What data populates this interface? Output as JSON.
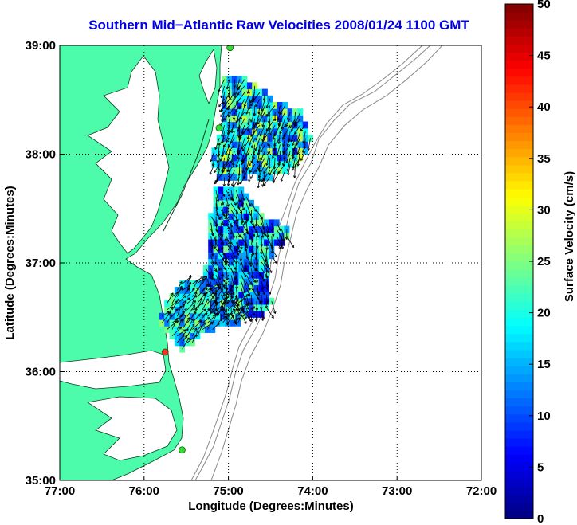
{
  "chart_data": {
    "type": "map-vector-field",
    "title": "Southern Mid−Atlantic Raw Velocities 2008/01/24 1100 GMT",
    "xlabel": "Longitude (Degrees:Minutes)",
    "ylabel": "Latitude (Degrees:Minutes)",
    "colorbar_label": "Surface Velocity (cm/s)",
    "xlim": [
      -77,
      -72
    ],
    "ylim": [
      35,
      39
    ],
    "x_ticks": [
      {
        "value": -77,
        "label": "77:00"
      },
      {
        "value": -76,
        "label": "76:00"
      },
      {
        "value": -75,
        "label": "75:00"
      },
      {
        "value": -74,
        "label": "74:00"
      },
      {
        "value": -73,
        "label": "73:00"
      },
      {
        "value": -72,
        "label": "72:00"
      }
    ],
    "y_ticks": [
      {
        "value": 35,
        "label": "35:00"
      },
      {
        "value": 36,
        "label": "36:00"
      },
      {
        "value": 37,
        "label": "37:00"
      },
      {
        "value": 38,
        "label": "38:00"
      },
      {
        "value": 39,
        "label": "39:00"
      }
    ],
    "colorbar_ticks": [
      {
        "value": 0,
        "label": "0"
      },
      {
        "value": 5,
        "label": "5"
      },
      {
        "value": 10,
        "label": "10"
      },
      {
        "value": 15,
        "label": "15"
      },
      {
        "value": 20,
        "label": "20"
      },
      {
        "value": 25,
        "label": "25"
      },
      {
        "value": 30,
        "label": "30"
      },
      {
        "value": 35,
        "label": "35"
      },
      {
        "value": 40,
        "label": "40"
      },
      {
        "value": 45,
        "label": "45"
      },
      {
        "value": 50,
        "label": "50"
      }
    ],
    "clim": [
      0,
      50
    ],
    "colormap": "jet",
    "grid": true,
    "land_color": "#4dfcaa",
    "contour_color": "#888888",
    "stations": [
      {
        "lon": -74.98,
        "lat": 38.98,
        "color": "#33dd33"
      },
      {
        "lon": -75.11,
        "lat": 38.24,
        "color": "#33dd33"
      },
      {
        "lon": -75.75,
        "lat": 36.18,
        "color": "#ff2a2a"
      },
      {
        "lon": -75.55,
        "lat": 35.28,
        "color": "#33dd33"
      }
    ],
    "velocity_regions": [
      {
        "name": "north",
        "value_range": [
          8,
          30
        ],
        "mean_direction": "south-southwest",
        "polygon": [
          [
            -75.1,
            38.72
          ],
          [
            -74.9,
            38.75
          ],
          [
            -74.65,
            38.62
          ],
          [
            -74.48,
            38.52
          ],
          [
            -74.15,
            38.4
          ],
          [
            -74.0,
            38.15
          ],
          [
            -74.2,
            37.88
          ],
          [
            -74.45,
            37.8
          ],
          [
            -74.6,
            37.76
          ],
          [
            -74.7,
            37.8
          ],
          [
            -74.9,
            37.78
          ],
          [
            -75.15,
            37.78
          ],
          [
            -75.2,
            37.98
          ],
          [
            -75.1,
            38.2
          ],
          [
            -75.05,
            38.45
          ]
        ]
      },
      {
        "name": "central",
        "value_range": [
          5,
          25
        ],
        "mean_direction": "south-southeast",
        "polygon": [
          [
            -75.15,
            37.7
          ],
          [
            -74.85,
            37.68
          ],
          [
            -74.6,
            37.45
          ],
          [
            -74.45,
            37.38
          ],
          [
            -74.25,
            37.34
          ],
          [
            -74.25,
            37.2
          ],
          [
            -74.45,
            37.18
          ],
          [
            -74.5,
            36.98
          ],
          [
            -74.55,
            36.8
          ],
          [
            -74.45,
            36.62
          ],
          [
            -74.6,
            36.52
          ],
          [
            -74.95,
            36.5
          ],
          [
            -75.2,
            36.55
          ],
          [
            -75.3,
            36.8
          ],
          [
            -75.25,
            37.1
          ],
          [
            -75.22,
            37.45
          ]
        ]
      },
      {
        "name": "south",
        "value_range": [
          10,
          26
        ],
        "mean_direction": "northeast",
        "polygon": [
          [
            -75.6,
            36.82
          ],
          [
            -75.35,
            36.85
          ],
          [
            -75.0,
            36.7
          ],
          [
            -74.75,
            36.55
          ],
          [
            -74.9,
            36.42
          ],
          [
            -75.25,
            36.38
          ],
          [
            -75.45,
            36.25
          ],
          [
            -75.55,
            36.18
          ],
          [
            -75.7,
            36.3
          ],
          [
            -75.82,
            36.5
          ]
        ]
      }
    ]
  }
}
